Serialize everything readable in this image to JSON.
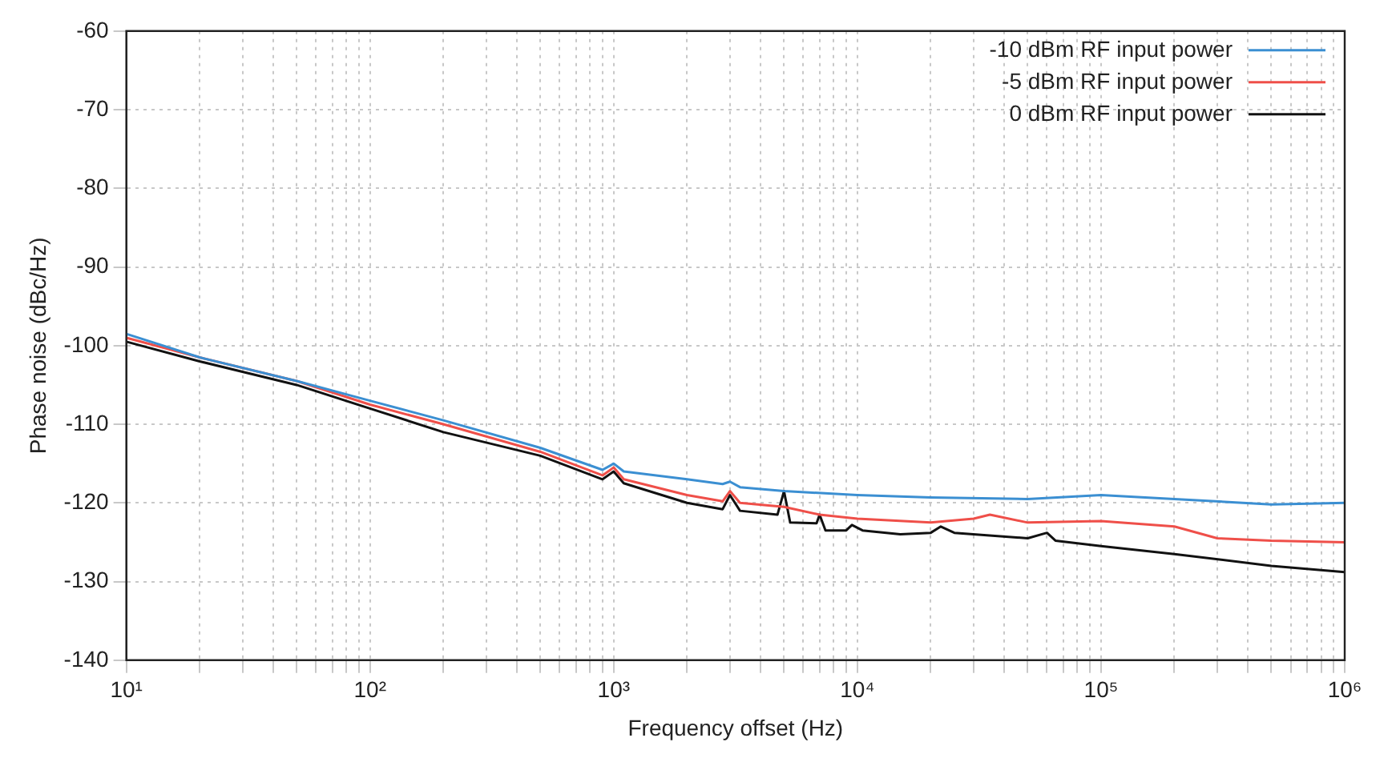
{
  "chart_data": {
    "type": "line",
    "xlabel": "Frequency offset (Hz)",
    "ylabel": "Phase noise (dBc/Hz)",
    "log": "x",
    "grid": true,
    "legend": "top right",
    "marker": "none",
    "line_style": "solid",
    "xlim": [
      10,
      1000000
    ],
    "ylim": [
      -140,
      -60
    ],
    "xticks": [
      {
        "value": 10,
        "label": "10¹"
      },
      {
        "value": 20,
        "label": null
      },
      {
        "value": 30,
        "label": null
      },
      {
        "value": 40,
        "label": null
      },
      {
        "value": 50,
        "label": null
      },
      {
        "value": 60,
        "label": null
      },
      {
        "value": 70,
        "label": null
      },
      {
        "value": 80,
        "label": null
      },
      {
        "value": 90,
        "label": null
      },
      {
        "value": 100,
        "label": "10²"
      },
      {
        "value": 200,
        "label": null
      },
      {
        "value": 300,
        "label": null
      },
      {
        "value": 400,
        "label": null
      },
      {
        "value": 500,
        "label": null
      },
      {
        "value": 600,
        "label": null
      },
      {
        "value": 700,
        "label": null
      },
      {
        "value": 800,
        "label": null
      },
      {
        "value": 900,
        "label": null
      },
      {
        "value": 1000,
        "label": "10³"
      },
      {
        "value": 2000,
        "label": null
      },
      {
        "value": 3000,
        "label": null
      },
      {
        "value": 4000,
        "label": null
      },
      {
        "value": 5000,
        "label": null
      },
      {
        "value": 6000,
        "label": null
      },
      {
        "value": 7000,
        "label": null
      },
      {
        "value": 8000,
        "label": null
      },
      {
        "value": 9000,
        "label": null
      },
      {
        "value": 10000,
        "label": "10⁴"
      },
      {
        "value": 20000,
        "label": null
      },
      {
        "value": 30000,
        "label": null
      },
      {
        "value": 40000,
        "label": null
      },
      {
        "value": 50000,
        "label": null
      },
      {
        "value": 60000,
        "label": null
      },
      {
        "value": 70000,
        "label": null
      },
      {
        "value": 80000,
        "label": null
      },
      {
        "value": 90000,
        "label": null
      },
      {
        "value": 100000,
        "label": "10⁵"
      },
      {
        "value": 200000,
        "label": null
      },
      {
        "value": 300000,
        "label": null
      },
      {
        "value": 400000,
        "label": null
      },
      {
        "value": 500000,
        "label": null
      },
      {
        "value": 600000,
        "label": null
      },
      {
        "value": 700000,
        "label": null
      },
      {
        "value": 800000,
        "label": null
      },
      {
        "value": 900000,
        "label": null
      },
      {
        "value": 1000000,
        "label": "10⁶"
      }
    ],
    "yticks": [
      -140,
      -130,
      -120,
      -110,
      -100,
      -90,
      -80,
      -70,
      -60
    ],
    "series": [
      {
        "name": "-10 dBm RF input power",
        "color": "#3b8fd2",
        "x": [
          10,
          20,
          50,
          100,
          200,
          500,
          900,
          1000,
          1100,
          2000,
          2800,
          3000,
          3300,
          5000,
          10000,
          20000,
          50000,
          100000,
          200000,
          500000,
          1000000
        ],
        "values": [
          -98.5,
          -101.5,
          -104.5,
          -107,
          -109.5,
          -113,
          -115.8,
          -115,
          -116,
          -117,
          -117.6,
          -117.3,
          -118,
          -118.5,
          -119,
          -119.3,
          -119.5,
          -119,
          -119.5,
          -120.2,
          -120
        ]
      },
      {
        "name": "-5 dBm RF input power",
        "color": "#ef4f49",
        "x": [
          10,
          20,
          50,
          100,
          200,
          500,
          900,
          1000,
          1100,
          2000,
          2800,
          3000,
          3300,
          5000,
          7000,
          10000,
          20000,
          30000,
          35000,
          50000,
          100000,
          200000,
          300000,
          500000,
          1000000
        ],
        "values": [
          -99,
          -101.5,
          -104.5,
          -107.5,
          -110,
          -113.5,
          -116.5,
          -115.5,
          -117,
          -119,
          -119.8,
          -118.5,
          -120,
          -120.5,
          -121.5,
          -122,
          -122.5,
          -122,
          -121.5,
          -122.5,
          -122.3,
          -123,
          -124.5,
          -124.8,
          -125
        ]
      },
      {
        "name": "0 dBm RF input power",
        "color": "#111111",
        "x": [
          10,
          20,
          50,
          100,
          200,
          500,
          900,
          1000,
          1100,
          2000,
          2800,
          3000,
          3300,
          4700,
          5000,
          5300,
          6800,
          7000,
          7400,
          9000,
          9500,
          10500,
          15000,
          20000,
          22000,
          25000,
          50000,
          60000,
          65000,
          100000,
          200000,
          500000,
          1000000
        ],
        "values": [
          -99.5,
          -102,
          -105,
          -108,
          -111,
          -114,
          -117,
          -116,
          -117.5,
          -120,
          -120.8,
          -119,
          -121,
          -121.5,
          -118.5,
          -122.5,
          -122.6,
          -121.5,
          -123.5,
          -123.5,
          -122.8,
          -123.5,
          -124,
          -123.8,
          -123,
          -123.8,
          -124.5,
          -123.8,
          -124.8,
          -125.5,
          -126.5,
          -128,
          -128.8
        ]
      }
    ]
  }
}
